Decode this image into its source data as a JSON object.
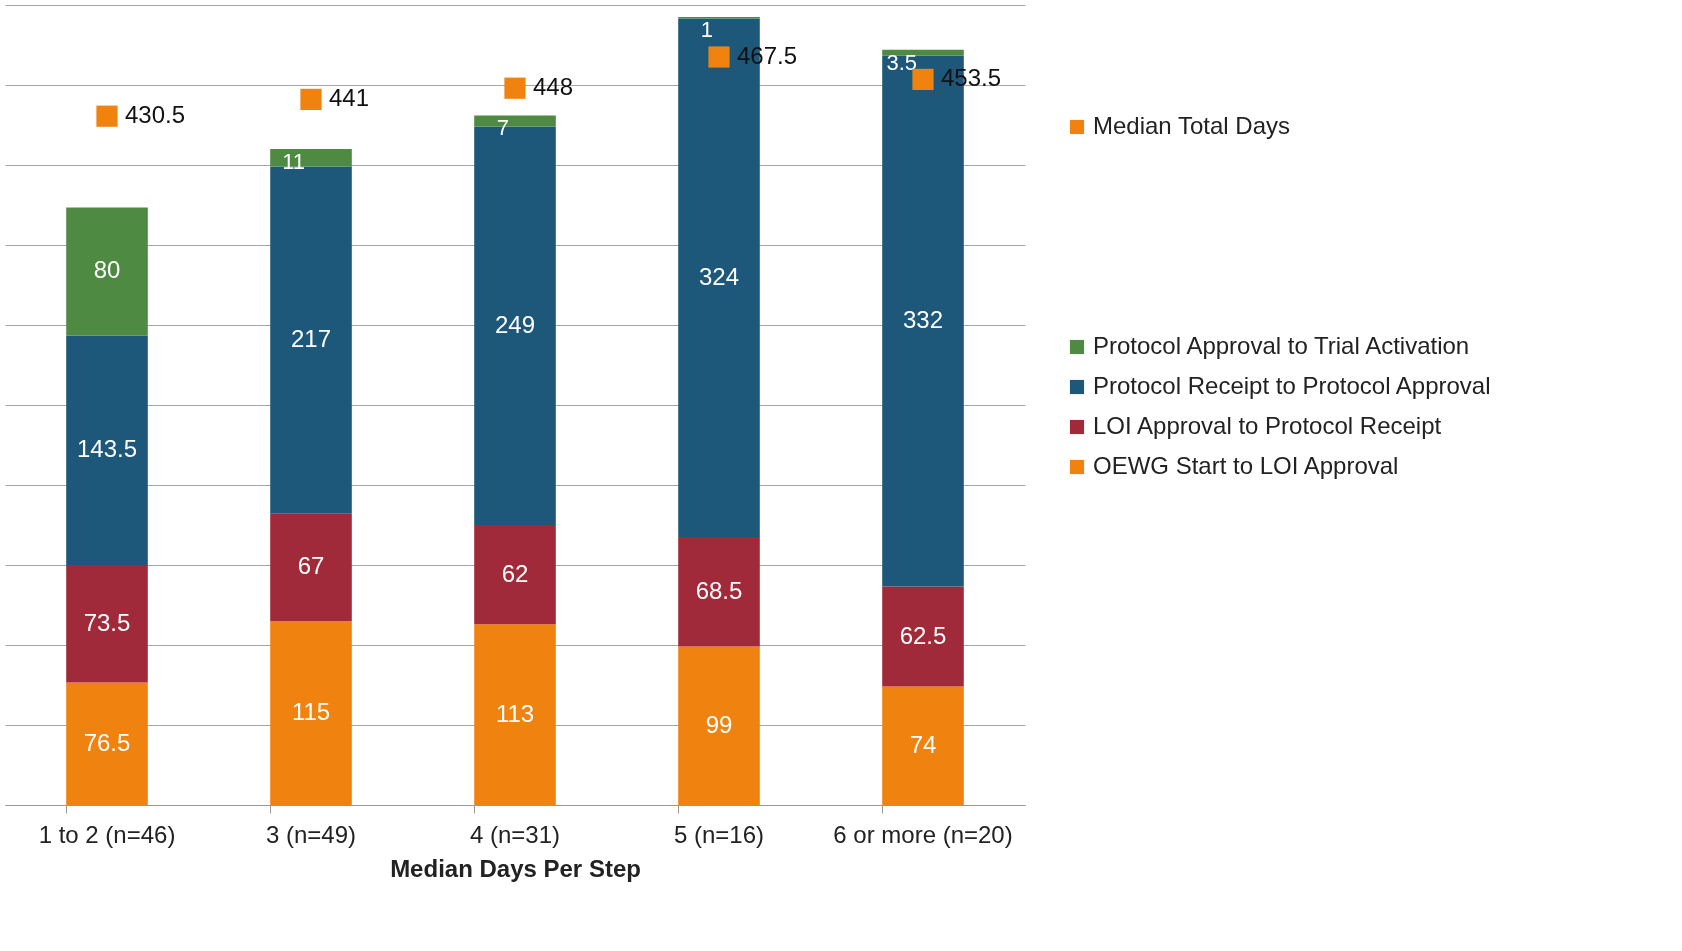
{
  "chart_data": {
    "type": "bar",
    "stacked": true,
    "xlabel": "Median Days Per Step",
    "categories": [
      "1 to 2 (n=46)",
      "3 (n=49)",
      "4 (n=31)",
      "5 (n=16)",
      "6 or more (n=20)"
    ],
    "series": [
      {
        "name": "OEWG Start to LOI Approval",
        "color": "#f0820f",
        "values": [
          76.5,
          115,
          113,
          99,
          74
        ]
      },
      {
        "name": "LOI Approval to Protocol Receipt",
        "color": "#a12a3a",
        "values": [
          73.5,
          67,
          62,
          68.5,
          62.5
        ]
      },
      {
        "name": "Protocol Receipt to Protocol Approval",
        "color": "#1d587a",
        "values": [
          143.5,
          217,
          249,
          324,
          332
        ]
      },
      {
        "name": "Protocol  Approval to Trial Activation",
        "color": "#4e8a41",
        "values": [
          80,
          11,
          7,
          1,
          3.5
        ]
      },
      {
        "type": "scatter",
        "name": "Median Total Days",
        "color": "#f0820f",
        "marker": "square",
        "x": [
          "1 to 2 (n=46)",
          "3 (n=49)",
          "4 (n=31)",
          "5 (n=16)",
          "6 or more (n=20)"
        ],
        "values": [
          430.5,
          441,
          448,
          467.5,
          453.5
        ]
      }
    ],
    "ylim": [
      0,
      500
    ],
    "yticks": [
      {
        "value": 0,
        "label": null
      },
      {
        "value": 50,
        "label": null
      },
      {
        "value": 100,
        "label": null
      },
      {
        "value": 150,
        "label": null
      },
      {
        "value": 200,
        "label": null
      },
      {
        "value": 250,
        "label": null
      },
      {
        "value": 300,
        "label": null
      },
      {
        "value": 350,
        "label": null
      },
      {
        "value": 400,
        "label": null
      },
      {
        "value": 450,
        "label": null
      },
      {
        "value": 500,
        "label": null
      }
    ],
    "tick_labels": "x",
    "grid": "y",
    "legend": "right",
    "data_labels": true
  }
}
